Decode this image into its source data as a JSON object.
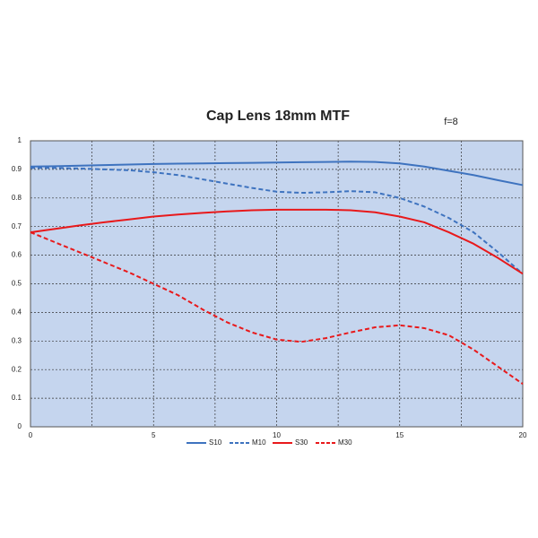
{
  "chart_data": {
    "type": "line",
    "title": "Cap Lens 18mm MTF",
    "subtitle": "f=8",
    "x": [
      0,
      1,
      2,
      3,
      4,
      5,
      6,
      7,
      8,
      9,
      10,
      11,
      12,
      13,
      14,
      15,
      16,
      17,
      18,
      19,
      20
    ],
    "series": [
      {
        "name": "S10",
        "color": "#3e73bf",
        "dashed": false,
        "values": [
          0.91,
          0.911,
          0.913,
          0.915,
          0.917,
          0.919,
          0.92,
          0.921,
          0.922,
          0.923,
          0.924,
          0.925,
          0.926,
          0.927,
          0.926,
          0.921,
          0.91,
          0.895,
          0.88,
          0.862,
          0.845
        ]
      },
      {
        "name": "M10",
        "color": "#3e73bf",
        "dashed": true,
        "values": [
          0.905,
          0.905,
          0.903,
          0.9,
          0.897,
          0.89,
          0.88,
          0.865,
          0.85,
          0.835,
          0.822,
          0.818,
          0.82,
          0.824,
          0.82,
          0.8,
          0.77,
          0.73,
          0.68,
          0.61,
          0.535
        ]
      },
      {
        "name": "S30",
        "color": "#e8191b",
        "dashed": false,
        "values": [
          0.68,
          0.692,
          0.704,
          0.715,
          0.725,
          0.735,
          0.742,
          0.748,
          0.753,
          0.757,
          0.759,
          0.759,
          0.759,
          0.757,
          0.75,
          0.735,
          0.715,
          0.68,
          0.64,
          0.59,
          0.535
        ]
      },
      {
        "name": "M30",
        "color": "#e8191b",
        "dashed": true,
        "values": [
          0.68,
          0.645,
          0.61,
          0.575,
          0.54,
          0.5,
          0.46,
          0.41,
          0.365,
          0.33,
          0.305,
          0.297,
          0.31,
          0.33,
          0.348,
          0.355,
          0.345,
          0.32,
          0.27,
          0.21,
          0.15
        ]
      }
    ],
    "xlim": [
      0,
      20
    ],
    "xticks": [
      0,
      5,
      10,
      15,
      20
    ],
    "xminor": [
      2.5,
      7.5,
      12.5,
      17.5
    ],
    "ylim": [
      0,
      1
    ],
    "yticks": [
      0,
      0.1,
      0.2,
      0.3,
      0.4,
      0.5,
      0.6,
      0.7,
      0.8,
      0.9,
      1
    ],
    "grid": true,
    "plot_background": "#c5d5ee",
    "legend": "bottom"
  }
}
